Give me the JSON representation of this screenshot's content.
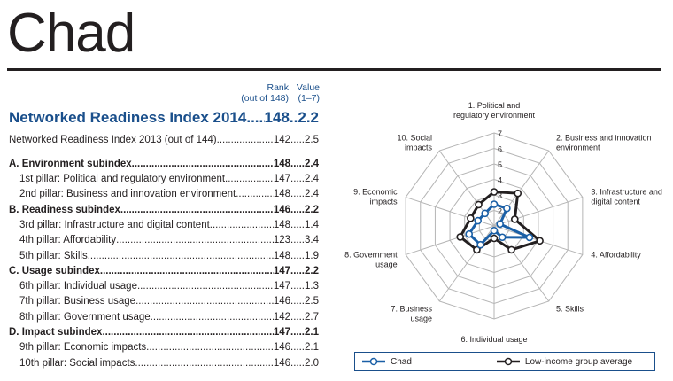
{
  "title": "Chad",
  "table": {
    "rank_header": "Rank",
    "rank_sub": "(out of 148)",
    "value_header": "Value",
    "value_sub": "(1–7)",
    "nri2014": {
      "label": "Networked Readiness Index 2014",
      "rank": "148",
      "value": "2.2"
    },
    "nri2013": {
      "label": "Networked Readiness Index 2013 (out of 144)",
      "rank": "142",
      "value": "2.5"
    },
    "rows": [
      {
        "label": "A. Environment subindex",
        "rank": "148",
        "value": "2.4",
        "type": "sub"
      },
      {
        "label": "1st pillar: Political and regulatory environment",
        "rank": "147",
        "value": "2.4",
        "type": "pillar"
      },
      {
        "label": "2nd pillar: Business and innovation environment",
        "rank": "148",
        "value": "2.4",
        "type": "pillar"
      },
      {
        "label": "B. Readiness subindex",
        "rank": "146",
        "value": "2.2",
        "type": "sub"
      },
      {
        "label": "3rd pillar: Infrastructure and digital content",
        "rank": "148",
        "value": "1.4",
        "type": "pillar"
      },
      {
        "label": "4th pillar: Affordability",
        "rank": "123",
        "value": "3.4",
        "type": "pillar"
      },
      {
        "label": "5th pillar: Skills",
        "rank": "148",
        "value": "1.9",
        "type": "pillar"
      },
      {
        "label": "C. Usage subindex",
        "rank": "147",
        "value": "2.2",
        "type": "sub"
      },
      {
        "label": "6th pillar: Individual usage",
        "rank": "147",
        "value": "1.3",
        "type": "pillar"
      },
      {
        "label": "7th pillar: Business usage",
        "rank": "146",
        "value": "2.5",
        "type": "pillar"
      },
      {
        "label": "8th pillar: Government usage",
        "rank": "142",
        "value": "2.7",
        "type": "pillar"
      },
      {
        "label": "D. Impact subindex",
        "rank": "147",
        "value": "2.1",
        "type": "sub"
      },
      {
        "label": "9th pillar: Economic impacts",
        "rank": "146",
        "value": "2.1",
        "type": "pillar"
      },
      {
        "label": "10th pillar: Social impacts",
        "rank": "146",
        "value": "2.0",
        "type": "pillar"
      }
    ]
  },
  "chart_data": {
    "type": "radar",
    "axes": [
      "1. Political and regulatory environment",
      "2. Business and innovation environment",
      "3. Infrastructure and digital content",
      "4. Affordability",
      "5. Skills",
      "6. Individual usage",
      "7. Business usage",
      "8. Government usage",
      "9. Economic impacts",
      "10. Social impacts"
    ],
    "range": [
      1,
      7
    ],
    "tick_labels": [
      "2",
      "3",
      "4",
      "5",
      "6",
      "7"
    ],
    "series": [
      {
        "name": "Chad",
        "color": "#1a5fa6",
        "values": [
          2.4,
          2.4,
          1.4,
          3.4,
          1.9,
          1.3,
          2.5,
          2.7,
          2.1,
          2.0
        ]
      },
      {
        "name": "Low-income group average",
        "color": "#231f20",
        "values": [
          3.2,
          3.6,
          2.4,
          4.1,
          2.9,
          1.8,
          2.9,
          3.3,
          2.6,
          2.7
        ]
      }
    ],
    "legend": "bottom"
  }
}
